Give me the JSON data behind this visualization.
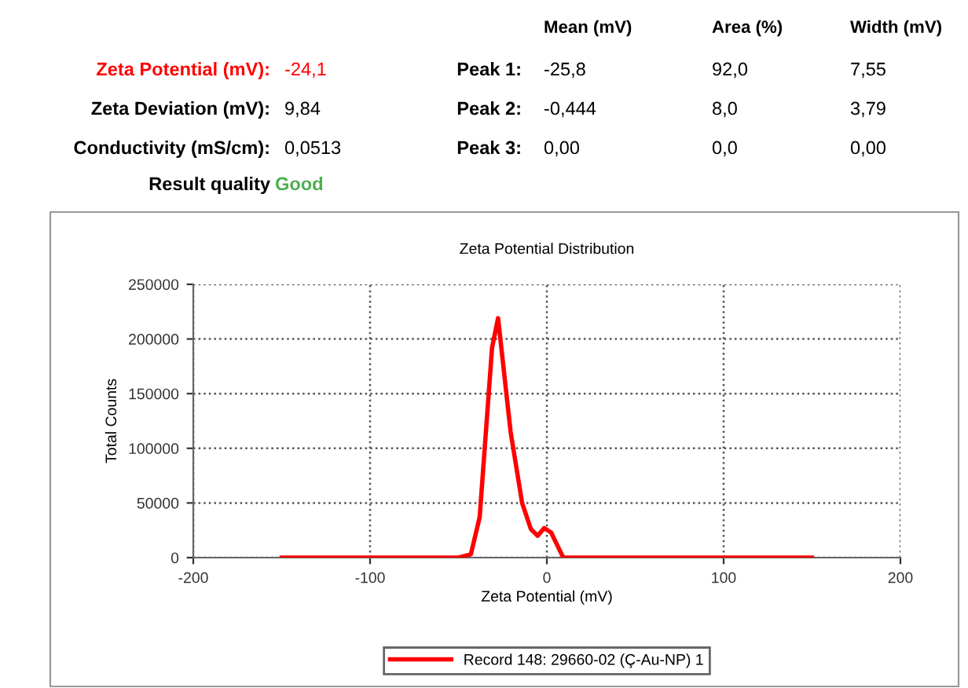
{
  "chart_data": {
    "type": "line",
    "title": "Zeta Potential Distribution",
    "xlabel": "Zeta Potential (mV)",
    "ylabel": "Total Counts",
    "annotations": [
      "Mean (mV)",
      "Area (%)",
      "Width (mV)",
      "Zeta Potential (mV):",
      "-24,1",
      "Peak 1:",
      "-25,8",
      "92,0",
      "7,55",
      "Zeta Deviation (mV):",
      "9,84",
      "Peak 2:",
      "-0,444",
      "8,0",
      "3,79",
      "Conductivity (mS/cm):",
      "0,0513",
      "Peak 3:",
      "0,00",
      "0,0",
      "0,00",
      "Result quality",
      "Good"
    ],
    "series": [
      {
        "name": "Record 148: 29660-02 (Ç-Au-NP) 1",
        "color": "#ff0000",
        "x": [
          -150,
          -50,
          -43,
          -38,
          -31,
          -27.6,
          -20.5,
          -14,
          -9,
          -5.2,
          -1.5,
          2.4,
          9,
          10,
          150
        ],
        "values": [
          0,
          0,
          3000,
          37000,
          192000,
          219000,
          115000,
          50000,
          26000,
          20000,
          27000,
          23000,
          1000,
          0,
          0
        ]
      }
    ],
    "xlim": [
      -200,
      200
    ],
    "xticks": [
      -200,
      -100,
      0,
      100,
      200
    ],
    "ylim": [
      0,
      250000
    ],
    "yticks": [
      0,
      50000,
      100000,
      150000,
      200000,
      250000
    ],
    "grid": true,
    "legend": "bottom",
    "line_style": "solid",
    "marker": "none"
  }
}
